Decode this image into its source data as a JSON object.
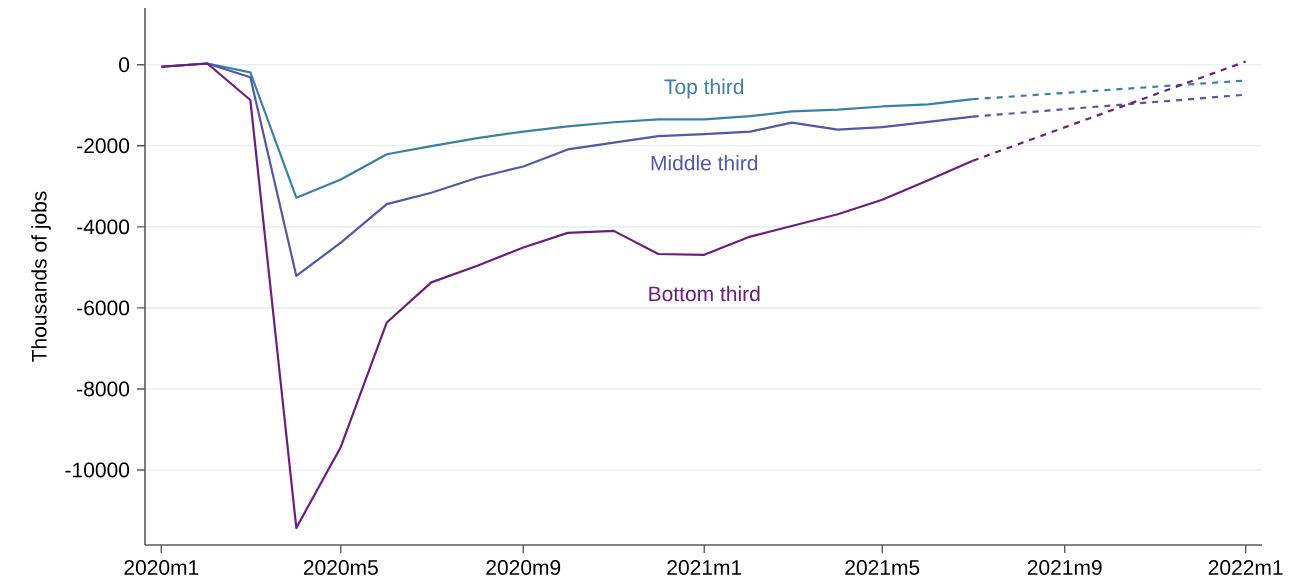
{
  "chart_data": {
    "type": "line",
    "ylabel": "Thousands of jobs",
    "x": [
      "2020-01",
      "2020-02",
      "2020-03",
      "2020-04",
      "2020-05",
      "2020-06",
      "2020-07",
      "2020-08",
      "2020-09",
      "2020-10",
      "2020-11",
      "2020-12",
      "2021-01",
      "2021-02",
      "2021-03",
      "2021-04",
      "2021-05",
      "2021-06",
      "2021-07"
    ],
    "series": [
      {
        "name": "Top third",
        "color": "#3b7fa6",
        "line_style": "solid",
        "values": [
          -50,
          30,
          -190,
          -3280,
          -2830,
          -2210,
          -2010,
          -1810,
          -1650,
          -1520,
          -1420,
          -1350,
          -1350,
          -1270,
          -1150,
          -1110,
          -1030,
          -980,
          -850
        ]
      },
      {
        "name": "Middle third",
        "color": "#5457a6",
        "line_style": "solid",
        "values": [
          -50,
          30,
          -310,
          -5210,
          -4390,
          -3440,
          -3160,
          -2790,
          -2510,
          -2090,
          -1920,
          -1760,
          -1710,
          -1650,
          -1430,
          -1600,
          -1540,
          -1410,
          -1280
        ]
      },
      {
        "name": "Bottom third",
        "color": "#6a1f7c",
        "line_style": "solid",
        "values": [
          -50,
          30,
          -870,
          -11430,
          -9430,
          -6360,
          -5370,
          -4960,
          -4510,
          -4150,
          -4100,
          -4670,
          -4690,
          -4240,
          -3980,
          -3690,
          -3330,
          -2850,
          -2370
        ]
      },
      {
        "color": "#3b7fa6",
        "line_style": "dashed",
        "x": [
          "2021-07",
          "2022-01"
        ],
        "values": [
          -850,
          -390
        ]
      },
      {
        "color": "#5457a6",
        "line_style": "dashed",
        "x": [
          "2021-07",
          "2022-01"
        ],
        "values": [
          -1280,
          -740
        ]
      },
      {
        "color": "#6a1f7c",
        "line_style": "dashed",
        "x": [
          "2021-07",
          "2022-01"
        ],
        "values": [
          -2370,
          80
        ]
      }
    ],
    "xlim": [
      "2019-12-21",
      "2022-01-12"
    ],
    "xticks": [
      {
        "value": "2020-01",
        "label": "2020m1"
      },
      {
        "value": "2020-05",
        "label": "2020m5"
      },
      {
        "value": "2020-09",
        "label": "2020m9"
      },
      {
        "value": "2021-01",
        "label": "2021m1"
      },
      {
        "value": "2021-05",
        "label": "2021m5"
      },
      {
        "value": "2021-09",
        "label": "2021m9"
      },
      {
        "value": "2022-01",
        "label": "2022m1"
      }
    ],
    "ylim": [
      -11850,
      1400
    ],
    "yticks": [
      0,
      -2000,
      -4000,
      -6000,
      -8000,
      -10000
    ],
    "grid": "y"
  }
}
